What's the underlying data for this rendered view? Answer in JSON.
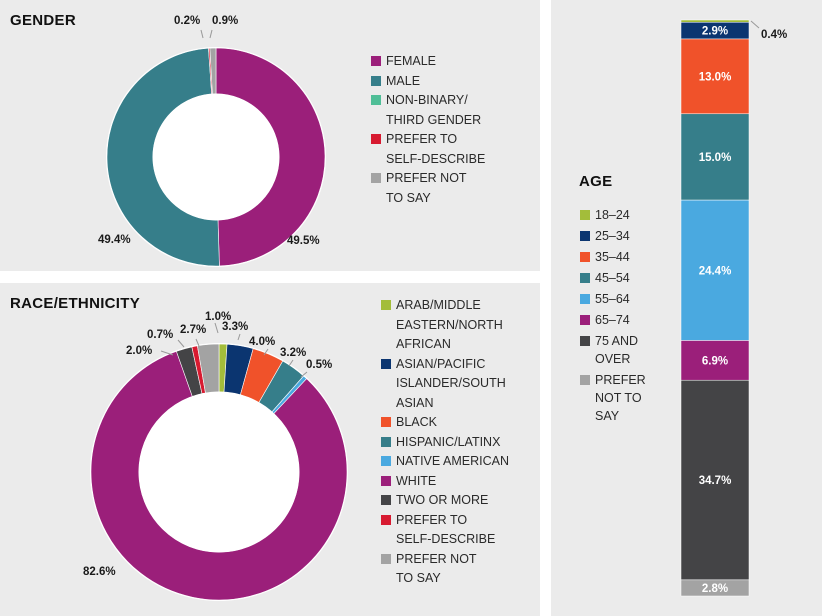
{
  "chart_data": [
    {
      "type": "pie",
      "title": "GENDER",
      "categories": [
        "FEMALE",
        "MALE",
        "NON-BINARY/\nTHIRD GENDER",
        "PREFER TO\nSELF-DESCRIBE",
        "PREFER NOT\nTO SAY"
      ],
      "values": [
        49.5,
        49.4,
        0.0,
        0.2,
        0.9
      ],
      "labels": [
        "49.5%",
        "49.4%",
        "",
        "0.2%",
        "0.9%"
      ],
      "colors": [
        "#9b1f7a",
        "#367e8a",
        "#4fbe97",
        "#d71a30",
        "#a3a3a3"
      ],
      "legend_position": "right"
    },
    {
      "type": "pie",
      "title": "RACE/ETHNICITY",
      "categories": [
        "ARAB/MIDDLE\nEASTERN/NORTH\nAFRICAN",
        "ASIAN/PACIFIC\nISLANDER/SOUTH\nASIAN",
        "BLACK",
        "HISPANIC/LATINX",
        "NATIVE AMERICAN",
        "WHITE",
        "TWO OR MORE",
        "PREFER TO\nSELF-DESCRIBE",
        "PREFER NOT\nTO SAY"
      ],
      "values": [
        1.0,
        3.3,
        4.0,
        3.2,
        0.5,
        82.6,
        2.0,
        0.7,
        2.7
      ],
      "labels": [
        "1.0%",
        "3.3%",
        "4.0%",
        "3.2%",
        "0.5%",
        "82.6%",
        "2.0%",
        "0.7%",
        "2.7%"
      ],
      "colors": [
        "#a3bd3a",
        "#0b3570",
        "#f0522a",
        "#367e8a",
        "#4aa9e0",
        "#9b1f7a",
        "#444446",
        "#d71a30",
        "#a3a3a3"
      ],
      "legend_position": "right"
    },
    {
      "type": "bar",
      "stacked": true,
      "title": "AGE",
      "categories": [
        "18–24",
        "25–34",
        "35–44",
        "45–54",
        "55–64",
        "65–74",
        "75 AND\nOVER",
        "PREFER\nNOT TO\nSAY"
      ],
      "values": [
        0.4,
        2.9,
        13.0,
        15.0,
        24.4,
        6.9,
        34.7,
        2.8
      ],
      "labels": [
        "0.4%",
        "2.9%",
        "13.0%",
        "15.0%",
        "24.4%",
        "6.9%",
        "34.7%",
        "2.8%"
      ],
      "colors": [
        "#a3bd3a",
        "#0b3570",
        "#f0522a",
        "#367e8a",
        "#4aa9e0",
        "#9b1f7a",
        "#444446",
        "#a3a3a3"
      ],
      "legend_position": "left"
    }
  ]
}
